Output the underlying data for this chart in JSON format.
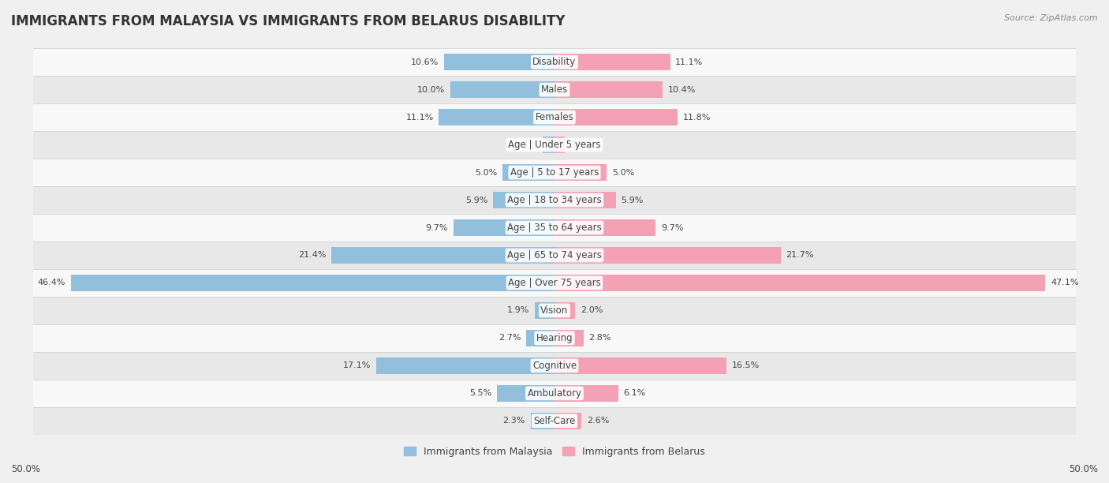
{
  "title": "IMMIGRANTS FROM MALAYSIA VS IMMIGRANTS FROM BELARUS DISABILITY",
  "source": "Source: ZipAtlas.com",
  "categories": [
    "Disability",
    "Males",
    "Females",
    "Age | Under 5 years",
    "Age | 5 to 17 years",
    "Age | 18 to 34 years",
    "Age | 35 to 64 years",
    "Age | 65 to 74 years",
    "Age | Over 75 years",
    "Vision",
    "Hearing",
    "Cognitive",
    "Ambulatory",
    "Self-Care"
  ],
  "malaysia_values": [
    10.6,
    10.0,
    11.1,
    1.1,
    5.0,
    5.9,
    9.7,
    21.4,
    46.4,
    1.9,
    2.7,
    17.1,
    5.5,
    2.3
  ],
  "belarus_values": [
    11.1,
    10.4,
    11.8,
    1.0,
    5.0,
    5.9,
    9.7,
    21.7,
    47.1,
    2.0,
    2.8,
    16.5,
    6.1,
    2.6
  ],
  "malaysia_color": "#92BFDC",
  "belarus_color": "#F4A0B5",
  "malaysia_label": "Immigrants from Malaysia",
  "belarus_label": "Immigrants from Belarus",
  "axis_limit": 50.0,
  "background_color": "#f0f0f0",
  "row_bg_light": "#f8f8f8",
  "row_bg_dark": "#e8e8e8",
  "title_fontsize": 12,
  "label_fontsize": 8.5,
  "value_fontsize": 8,
  "legend_fontsize": 9
}
